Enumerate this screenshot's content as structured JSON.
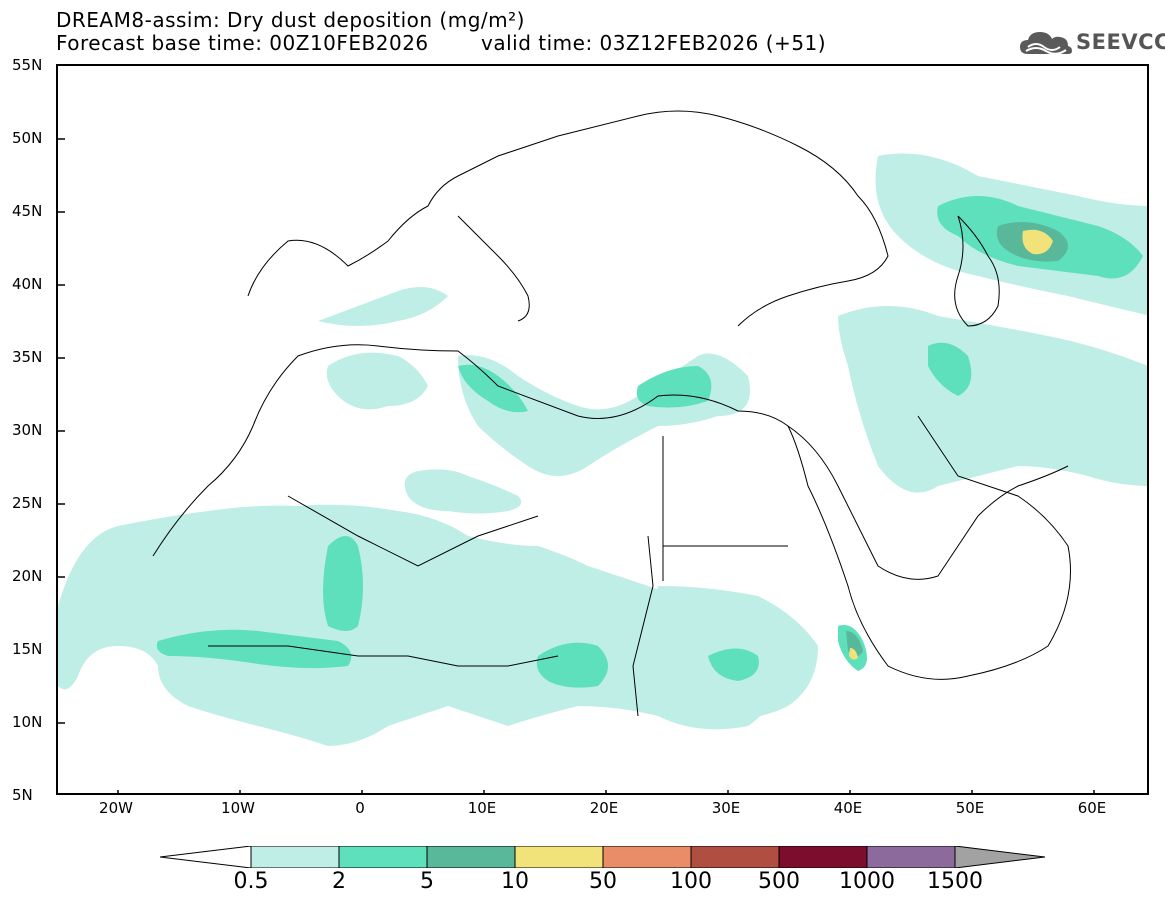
{
  "header": {
    "title_line1": "DREAM8-assim: Dry dust deposition (mg/m²)",
    "title_line2": "Forecast base time: 00Z10FEB2026",
    "title_valid": "valid time: 03Z12FEB2026 (+51)"
  },
  "logo": {
    "text": "SEEVCCC",
    "icon": "cloud-icon"
  },
  "map": {
    "y_ticks": [
      "55N",
      "50N",
      "45N",
      "40N",
      "35N",
      "30N",
      "25N",
      "20N",
      "15N",
      "10N",
      "5N"
    ],
    "x_ticks": [
      "20W",
      "10W",
      "0",
      "10E",
      "20E",
      "30E",
      "40E",
      "50E",
      "60E"
    ],
    "colorbar": {
      "labels": [
        "0.5",
        "2",
        "5",
        "10",
        "50",
        "100",
        "500",
        "1000",
        "1500"
      ],
      "colors": [
        "#bfeee6",
        "#5fe0bd",
        "#5ab89a",
        "#f2e27a",
        "#e88d68",
        "#b04e42",
        "#7c0d2c",
        "#8d6a9c",
        "#a2a2a2"
      ]
    }
  }
}
